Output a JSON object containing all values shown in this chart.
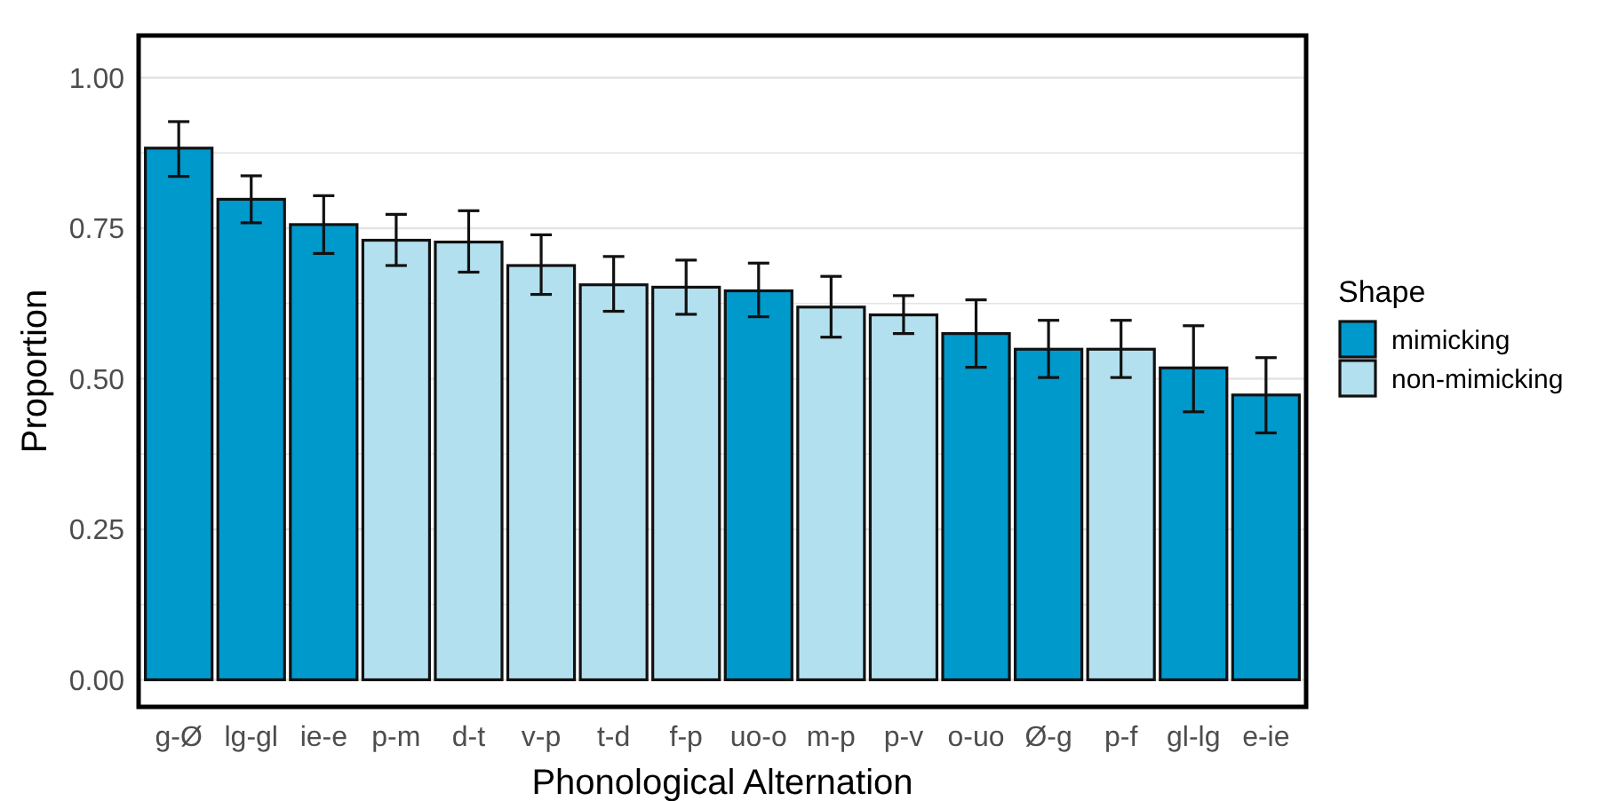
{
  "chart_data": {
    "type": "bar",
    "xlabel": "Phonological Alternation",
    "ylabel": "Proportion",
    "legend_title": "Shape",
    "legend": "right",
    "grid": "y",
    "categories": [
      "g-Ø",
      "lg-gl",
      "ie-e",
      "p-m",
      "d-t",
      "v-p",
      "t-d",
      "f-p",
      "uo-o",
      "m-p",
      "p-v",
      "o-uo",
      "Ø-g",
      "p-f",
      "gl-lg",
      "e-ie"
    ],
    "series": [
      {
        "name": "mimicking",
        "color": "#0099cc",
        "values": [
          0.883,
          0.798,
          0.756,
          null,
          null,
          null,
          null,
          null,
          0.646,
          null,
          null,
          0.575,
          0.549,
          null,
          0.518,
          0.473
        ],
        "errors": [
          [
            0.836,
            0.927
          ],
          [
            0.759,
            0.837
          ],
          [
            0.708,
            0.804
          ],
          null,
          null,
          null,
          null,
          null,
          [
            0.603,
            0.692
          ],
          null,
          null,
          [
            0.519,
            0.631
          ],
          [
            0.502,
            0.597
          ],
          null,
          [
            0.445,
            0.588
          ],
          [
            0.41,
            0.535
          ]
        ]
      },
      {
        "name": "non-mimicking",
        "color": "#b3e0ef",
        "values": [
          null,
          null,
          null,
          0.73,
          0.727,
          0.688,
          0.656,
          0.652,
          null,
          0.619,
          0.606,
          null,
          null,
          0.549,
          null,
          null
        ],
        "errors": [
          null,
          null,
          null,
          [
            0.688,
            0.773
          ],
          [
            0.677,
            0.779
          ],
          [
            0.64,
            0.739
          ],
          [
            0.612,
            0.703
          ],
          [
            0.607,
            0.697
          ],
          null,
          [
            0.569,
            0.67
          ],
          [
            0.575,
            0.638
          ],
          null,
          null,
          [
            0.502,
            0.597
          ],
          null,
          null
        ]
      }
    ],
    "ylim": [
      -0.045,
      1.07
    ],
    "yticks": [
      {
        "value": 0,
        "label": "0.00"
      },
      {
        "value": 0.125,
        "label": null
      },
      {
        "value": 0.25,
        "label": "0.25"
      },
      {
        "value": 0.375,
        "label": null
      },
      {
        "value": 0.5,
        "label": "0.50"
      },
      {
        "value": 0.625,
        "label": null
      },
      {
        "value": 0.75,
        "label": "0.75"
      },
      {
        "value": 0.875,
        "label": null
      },
      {
        "value": 1,
        "label": "1.00"
      }
    ]
  }
}
